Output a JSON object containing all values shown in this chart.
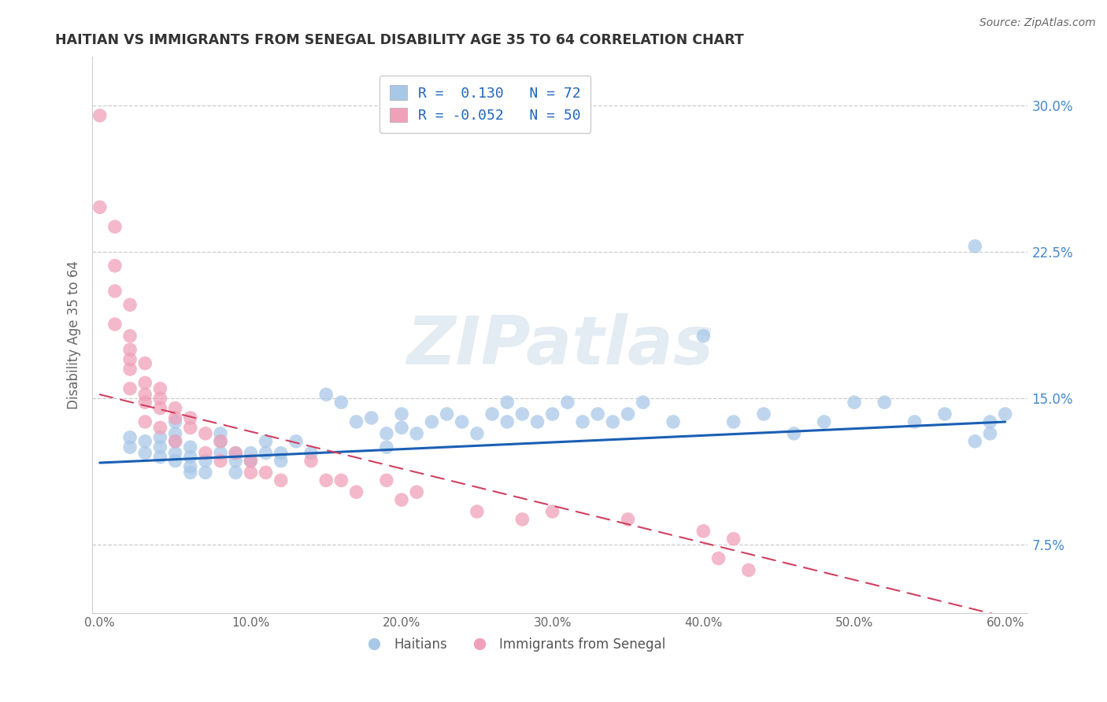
{
  "title": "HAITIAN VS IMMIGRANTS FROM SENEGAL DISABILITY AGE 35 TO 64 CORRELATION CHART",
  "source_text": "Source: ZipAtlas.com",
  "ylabel": "Disability Age 35 to 64",
  "xlabel": "",
  "xlim": [
    -0.005,
    0.615
  ],
  "ylim": [
    0.04,
    0.325
  ],
  "xticks": [
    0.0,
    0.1,
    0.2,
    0.3,
    0.4,
    0.5,
    0.6
  ],
  "xticklabels": [
    "0.0%",
    "10.0%",
    "20.0%",
    "30.0%",
    "40.0%",
    "50.0%",
    "60.0%"
  ],
  "yticks": [
    0.075,
    0.15,
    0.225,
    0.3
  ],
  "yticklabels": [
    "7.5%",
    "15.0%",
    "22.5%",
    "30.0%"
  ],
  "haitians_R": 0.13,
  "haitians_N": 72,
  "senegal_R": -0.052,
  "senegal_N": 50,
  "haitians_color": "#a8c8e8",
  "senegal_color": "#f0a0b8",
  "trendline_haitian_color": "#1a5fb4",
  "trendline_senegal_color": "#d04060",
  "watermark": "ZIPatlas",
  "legend_label_haitian": "Haitians",
  "legend_label_senegal": "Immigrants from Senegal",
  "haitians_x": [
    0.02,
    0.02,
    0.03,
    0.03,
    0.04,
    0.04,
    0.04,
    0.05,
    0.05,
    0.05,
    0.05,
    0.05,
    0.06,
    0.06,
    0.06,
    0.06,
    0.07,
    0.07,
    0.08,
    0.08,
    0.08,
    0.09,
    0.09,
    0.09,
    0.1,
    0.1,
    0.11,
    0.11,
    0.12,
    0.12,
    0.13,
    0.14,
    0.15,
    0.16,
    0.17,
    0.18,
    0.19,
    0.19,
    0.2,
    0.2,
    0.21,
    0.22,
    0.23,
    0.24,
    0.25,
    0.26,
    0.27,
    0.27,
    0.28,
    0.29,
    0.3,
    0.31,
    0.32,
    0.33,
    0.34,
    0.35,
    0.36,
    0.38,
    0.4,
    0.42,
    0.44,
    0.46,
    0.48,
    0.5,
    0.52,
    0.54,
    0.56,
    0.58,
    0.59,
    0.6,
    0.58,
    0.59
  ],
  "haitians_y": [
    0.13,
    0.125,
    0.128,
    0.122,
    0.125,
    0.12,
    0.13,
    0.118,
    0.122,
    0.128,
    0.132,
    0.138,
    0.115,
    0.12,
    0.125,
    0.112,
    0.118,
    0.112,
    0.128,
    0.132,
    0.122,
    0.118,
    0.112,
    0.122,
    0.122,
    0.118,
    0.128,
    0.122,
    0.118,
    0.122,
    0.128,
    0.122,
    0.152,
    0.148,
    0.138,
    0.14,
    0.132,
    0.125,
    0.142,
    0.135,
    0.132,
    0.138,
    0.142,
    0.138,
    0.132,
    0.142,
    0.148,
    0.138,
    0.142,
    0.138,
    0.142,
    0.148,
    0.138,
    0.142,
    0.138,
    0.142,
    0.148,
    0.138,
    0.182,
    0.138,
    0.142,
    0.132,
    0.138,
    0.148,
    0.148,
    0.138,
    0.142,
    0.228,
    0.138,
    0.142,
    0.128,
    0.132
  ],
  "senegal_x": [
    0.0,
    0.0,
    0.01,
    0.01,
    0.01,
    0.01,
    0.02,
    0.02,
    0.02,
    0.02,
    0.02,
    0.02,
    0.03,
    0.03,
    0.03,
    0.03,
    0.03,
    0.04,
    0.04,
    0.04,
    0.04,
    0.05,
    0.05,
    0.05,
    0.06,
    0.06,
    0.07,
    0.07,
    0.08,
    0.08,
    0.09,
    0.1,
    0.1,
    0.11,
    0.12,
    0.14,
    0.15,
    0.16,
    0.17,
    0.19,
    0.2,
    0.21,
    0.25,
    0.28,
    0.3,
    0.35,
    0.4,
    0.41,
    0.42,
    0.43
  ],
  "senegal_y": [
    0.295,
    0.248,
    0.238,
    0.218,
    0.205,
    0.188,
    0.198,
    0.182,
    0.175,
    0.17,
    0.165,
    0.155,
    0.168,
    0.158,
    0.152,
    0.148,
    0.138,
    0.155,
    0.15,
    0.145,
    0.135,
    0.145,
    0.14,
    0.128,
    0.14,
    0.135,
    0.132,
    0.122,
    0.128,
    0.118,
    0.122,
    0.118,
    0.112,
    0.112,
    0.108,
    0.118,
    0.108,
    0.108,
    0.102,
    0.108,
    0.098,
    0.102,
    0.092,
    0.088,
    0.092,
    0.088,
    0.082,
    0.068,
    0.078,
    0.062
  ],
  "haitian_trend_x": [
    0.0,
    0.6
  ],
  "haitian_trend_y": [
    0.117,
    0.138
  ],
  "senegal_trend_x": [
    0.0,
    0.6
  ],
  "senegal_trend_y": [
    0.152,
    0.038
  ]
}
